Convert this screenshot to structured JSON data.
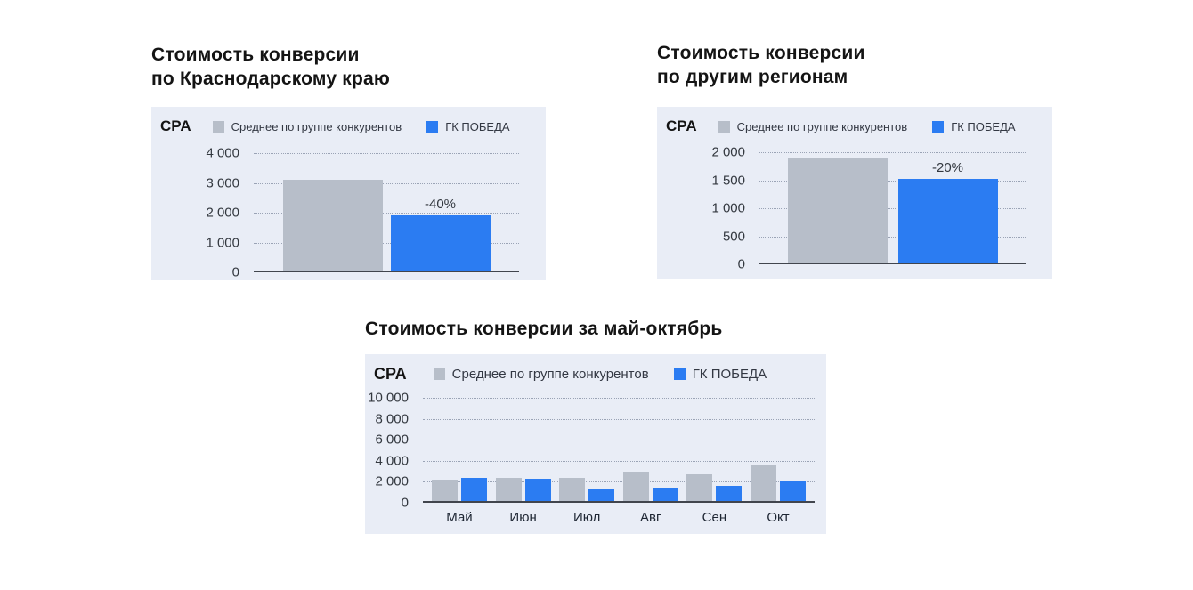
{
  "colors": {
    "page_background": "#ffffff",
    "panel_background": "#e9edf6",
    "competitor_bar": "#b7bec9",
    "pobeda_bar": "#2b7cf2",
    "axis_line": "#41454d",
    "gridline": "#9aa3b5"
  },
  "chart_data": [
    {
      "id": "krasnodar",
      "type": "bar",
      "title": "Стоимость конверсии по Краснодарскому краю",
      "title_lines": [
        "Стоимость конверсии",
        "по Краснодарскому краю"
      ],
      "corner_label": "CPA",
      "ylabel": "CPA",
      "xlabel": "",
      "legend_position": "top",
      "grid": "dotted-horizontal",
      "legend": [
        {
          "label": "Среднее по группе конкурентов",
          "swatch": "#b7bec9"
        },
        {
          "label": "ГК ПОБЕДА",
          "swatch": "#2b7cf2"
        }
      ],
      "categories": [
        ""
      ],
      "series": [
        {
          "name": "Среднее по группе конкурентов",
          "color": "#b7bec9",
          "values": [
            3100
          ]
        },
        {
          "name": "ГК ПОБЕДА",
          "color": "#2b7cf2",
          "values": [
            1900
          ]
        }
      ],
      "annotations": [
        {
          "text": "-40%",
          "series_index": 1,
          "category_index": 0
        }
      ],
      "ylim": [
        0,
        4000
      ],
      "yticks": [
        {
          "value": 4000,
          "label": "4 000"
        },
        {
          "value": 3000,
          "label": "3 000"
        },
        {
          "value": 2000,
          "label": "2 000"
        },
        {
          "value": 1000,
          "label": "1 000"
        },
        {
          "value": 0,
          "label": "0"
        }
      ],
      "show_x_labels": false
    },
    {
      "id": "other-regions",
      "type": "bar",
      "title": "Стоимость конверсии по другим регионам",
      "title_lines": [
        "Стоимость конверсии",
        "по другим регионам"
      ],
      "corner_label": "CPA",
      "ylabel": "CPA",
      "xlabel": "",
      "legend_position": "top",
      "grid": "dotted-horizontal",
      "legend": [
        {
          "label": "Среднее по группе конкурентов",
          "swatch": "#b7bec9"
        },
        {
          "label": "ГК ПОБЕДА",
          "swatch": "#2b7cf2"
        }
      ],
      "categories": [
        ""
      ],
      "series": [
        {
          "name": "Среднее по группе конкурентов",
          "color": "#b7bec9",
          "values": [
            1900
          ]
        },
        {
          "name": "ГК ПОБЕДА",
          "color": "#2b7cf2",
          "values": [
            1520
          ]
        }
      ],
      "annotations": [
        {
          "text": "-20%",
          "series_index": 1,
          "category_index": 0
        }
      ],
      "ylim": [
        0,
        2000
      ],
      "yticks": [
        {
          "value": 2000,
          "label": "2 000"
        },
        {
          "value": 1500,
          "label": "1 500"
        },
        {
          "value": 1000,
          "label": "1 000"
        },
        {
          "value": 500,
          "label": "500"
        },
        {
          "value": 0,
          "label": "0"
        }
      ],
      "show_x_labels": false
    },
    {
      "id": "may-october",
      "type": "bar",
      "title": "Стоимость конверсии за май-октябрь",
      "title_lines": [
        "Стоимость конверсии за май-октябрь"
      ],
      "corner_label": "CPA",
      "ylabel": "CPA",
      "xlabel": "",
      "legend_position": "top",
      "grid": "dotted-horizontal",
      "legend": [
        {
          "label": "Среднее по группе конкурентов",
          "swatch": "#b7bec9"
        },
        {
          "label": "ГК ПОБЕДА",
          "swatch": "#2b7cf2"
        }
      ],
      "categories": [
        "Май",
        "Июн",
        "Июл",
        "Авг",
        "Сен",
        "Окт"
      ],
      "series": [
        {
          "name": "Среднее по группе конкурентов",
          "color": "#b7bec9",
          "values": [
            2200,
            2350,
            2350,
            2950,
            2700,
            3550
          ]
        },
        {
          "name": "ГК ПОБЕДА",
          "color": "#2b7cf2",
          "values": [
            2400,
            2300,
            1350,
            1450,
            1600,
            2050
          ]
        }
      ],
      "annotations": [],
      "ylim": [
        0,
        10000
      ],
      "yticks": [
        {
          "value": 10000,
          "label": "10 000"
        },
        {
          "value": 8000,
          "label": "8 000"
        },
        {
          "value": 6000,
          "label": "6 000"
        },
        {
          "value": 4000,
          "label": "4 000"
        },
        {
          "value": 2000,
          "label": "2 000"
        },
        {
          "value": 0,
          "label": "0"
        }
      ],
      "show_x_labels": true
    }
  ]
}
